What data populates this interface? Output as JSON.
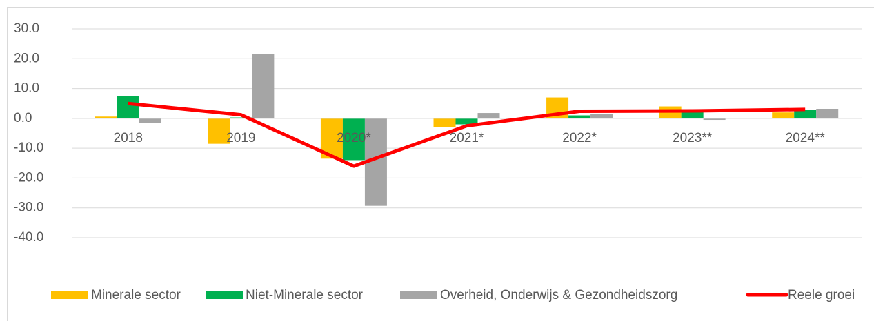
{
  "chart_data": {
    "type": "bar",
    "categories": [
      "2018",
      "2019",
      "2020*",
      "2021*",
      "2022*",
      "2023**",
      "2024**"
    ],
    "series": [
      {
        "name": "Minerale sector",
        "color": "#ffc000",
        "values": [
          0.6,
          -8.5,
          -13.5,
          -3.0,
          7.0,
          4.0,
          2.0
        ]
      },
      {
        "name": "Niet-Minerale sector",
        "color": "#00b050",
        "values": [
          7.5,
          0.3,
          -14.0,
          -2.0,
          1.0,
          2.5,
          2.8
        ]
      },
      {
        "name": "Overheid, Onderwijs & Gezondheidszorg",
        "color": "#a5a5a5",
        "values": [
          -1.5,
          21.5,
          -29.3,
          1.8,
          1.5,
          -0.5,
          3.2
        ]
      },
      {
        "name": "Reele groei",
        "color": "#ff0000",
        "type": "line",
        "values": [
          5.0,
          1.2,
          -16.0,
          -2.5,
          2.4,
          2.5,
          3.0
        ]
      }
    ],
    "ylim": [
      -40,
      30
    ],
    "yticks": [
      {
        "value": -40,
        "label": "-40.0"
      },
      {
        "value": -30,
        "label": "-30.0"
      },
      {
        "value": -20,
        "label": "-20.0"
      },
      {
        "value": -10,
        "label": "-10.0"
      },
      {
        "value": 0,
        "label": "0.0"
      },
      {
        "value": 10,
        "label": "10.0"
      },
      {
        "value": 20,
        "label": "20.0"
      },
      {
        "value": 30,
        "label": "30.0"
      }
    ],
    "grid": true,
    "legend": "bottom"
  }
}
